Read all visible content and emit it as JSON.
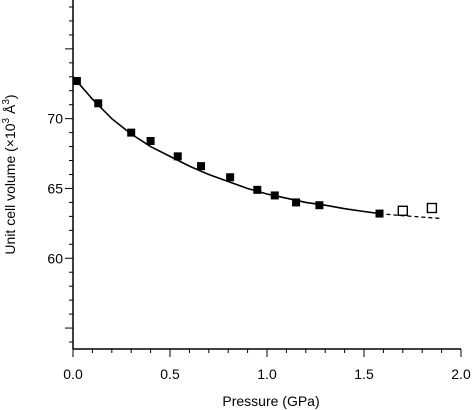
{
  "chart_data": {
    "type": "scatter",
    "xlabel": "Pressure (GPa)",
    "ylabel": {
      "prefix": "Unit cell volume (×10",
      "exp1": "3",
      "middle": " Å",
      "exp2": "3",
      "suffix": ")"
    },
    "xlim": [
      0.0,
      2.0
    ],
    "ylim": [
      53.5,
      78.5
    ],
    "xticks": [
      {
        "value": 0.0,
        "label": "0.0"
      },
      {
        "value": 0.5,
        "label": "0.5"
      },
      {
        "value": 1.0,
        "label": "1.0"
      },
      {
        "value": 1.5,
        "label": "1.5"
      },
      {
        "value": 2.0,
        "label": "2.0"
      }
    ],
    "yticks": [
      {
        "value": 60,
        "label": "60"
      },
      {
        "value": 65,
        "label": "65"
      },
      {
        "value": 70,
        "label": "70"
      }
    ],
    "grid": false,
    "series": [
      {
        "marker": "filled-square",
        "color": "#000000",
        "points": [
          {
            "x": 0.02,
            "y": 72.7
          },
          {
            "x": 0.13,
            "y": 71.1
          },
          {
            "x": 0.3,
            "y": 69.0
          },
          {
            "x": 0.4,
            "y": 68.4
          },
          {
            "x": 0.54,
            "y": 67.3
          },
          {
            "x": 0.66,
            "y": 66.6
          },
          {
            "x": 0.81,
            "y": 65.8
          },
          {
            "x": 0.95,
            "y": 64.9
          },
          {
            "x": 1.04,
            "y": 64.5
          },
          {
            "x": 1.15,
            "y": 64.0
          },
          {
            "x": 1.27,
            "y": 63.8
          },
          {
            "x": 1.58,
            "y": 63.2
          }
        ]
      },
      {
        "marker": "open-square",
        "color": "#000000",
        "points": [
          {
            "x": 1.7,
            "y": 63.4
          },
          {
            "x": 1.85,
            "y": 63.6
          }
        ]
      }
    ],
    "fit_curve": {
      "style": "solid",
      "x": [
        0.0,
        0.1,
        0.2,
        0.3,
        0.4,
        0.5,
        0.6,
        0.7,
        0.8,
        0.9,
        1.0,
        1.1,
        1.2,
        1.3,
        1.4,
        1.5,
        1.58
      ],
      "y": [
        73.0,
        71.4,
        70.0,
        68.9,
        68.0,
        67.3,
        66.6,
        66.0,
        65.5,
        65.0,
        64.6,
        64.3,
        64.0,
        63.8,
        63.55,
        63.35,
        63.2
      ]
    },
    "extrapolated_curve": {
      "style": "dashed",
      "x": [
        1.58,
        1.7,
        1.8,
        1.9
      ],
      "y": [
        63.2,
        63.05,
        62.95,
        62.85
      ]
    }
  }
}
